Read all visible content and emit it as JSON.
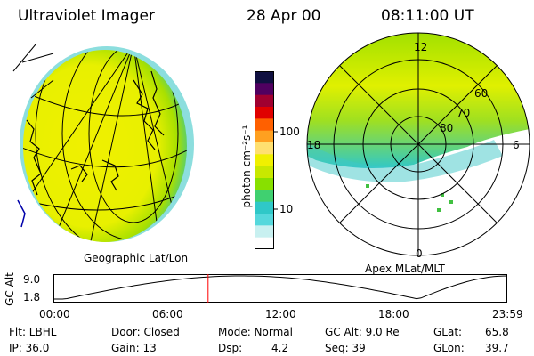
{
  "header": {
    "title": "Ultraviolet Imager",
    "date": "28 Apr 00",
    "time": "08:11:00 UT"
  },
  "colorbar": {
    "unit_label": "photon cm⁻²s⁻¹",
    "ticks": [
      "100",
      "10"
    ],
    "scale": "log",
    "colors": [
      "#fefefe",
      "#c8f0f0",
      "#55d8dc",
      "#2fc8c8",
      "#40d070",
      "#88e000",
      "#c8e800",
      "#f0f000",
      "#ffe070",
      "#ffa020",
      "#ff6000",
      "#e00000",
      "#a00030",
      "#500060",
      "#101040"
    ]
  },
  "left_panel": {
    "caption": "Geographic Lat/Lon"
  },
  "right_panel": {
    "caption": "Apex MLat/MLT",
    "lat_labels": [
      "60",
      "70",
      "80"
    ],
    "mlt_labels": {
      "top": "12",
      "left": "18",
      "right": "6",
      "bottom": "0"
    }
  },
  "altitude_plot": {
    "axis_label": "GC Alt",
    "y_ticks": [
      "9.0",
      "1.8"
    ],
    "x_ticks": [
      "00:00",
      "06:00",
      "12:00",
      "18:00",
      "23:59"
    ],
    "marker_time_hours": 8.18,
    "curve_color": "#000000",
    "marker_color": "#ff0000"
  },
  "info": {
    "filter": "Flt: LBHL",
    "ip": "IP: 36.0",
    "door": "Door: Closed",
    "gain": "Gain: 13",
    "mode": "Mode: Normal",
    "dsp_label": "Dsp:",
    "dsp_value": "4.2",
    "gc_alt": "GC Alt: 9.0 Re",
    "seq": "Seq: 39",
    "glat_label": "GLat:",
    "glat_value": "65.8",
    "glon_label": "GLon:",
    "glon_value": "39.7"
  }
}
